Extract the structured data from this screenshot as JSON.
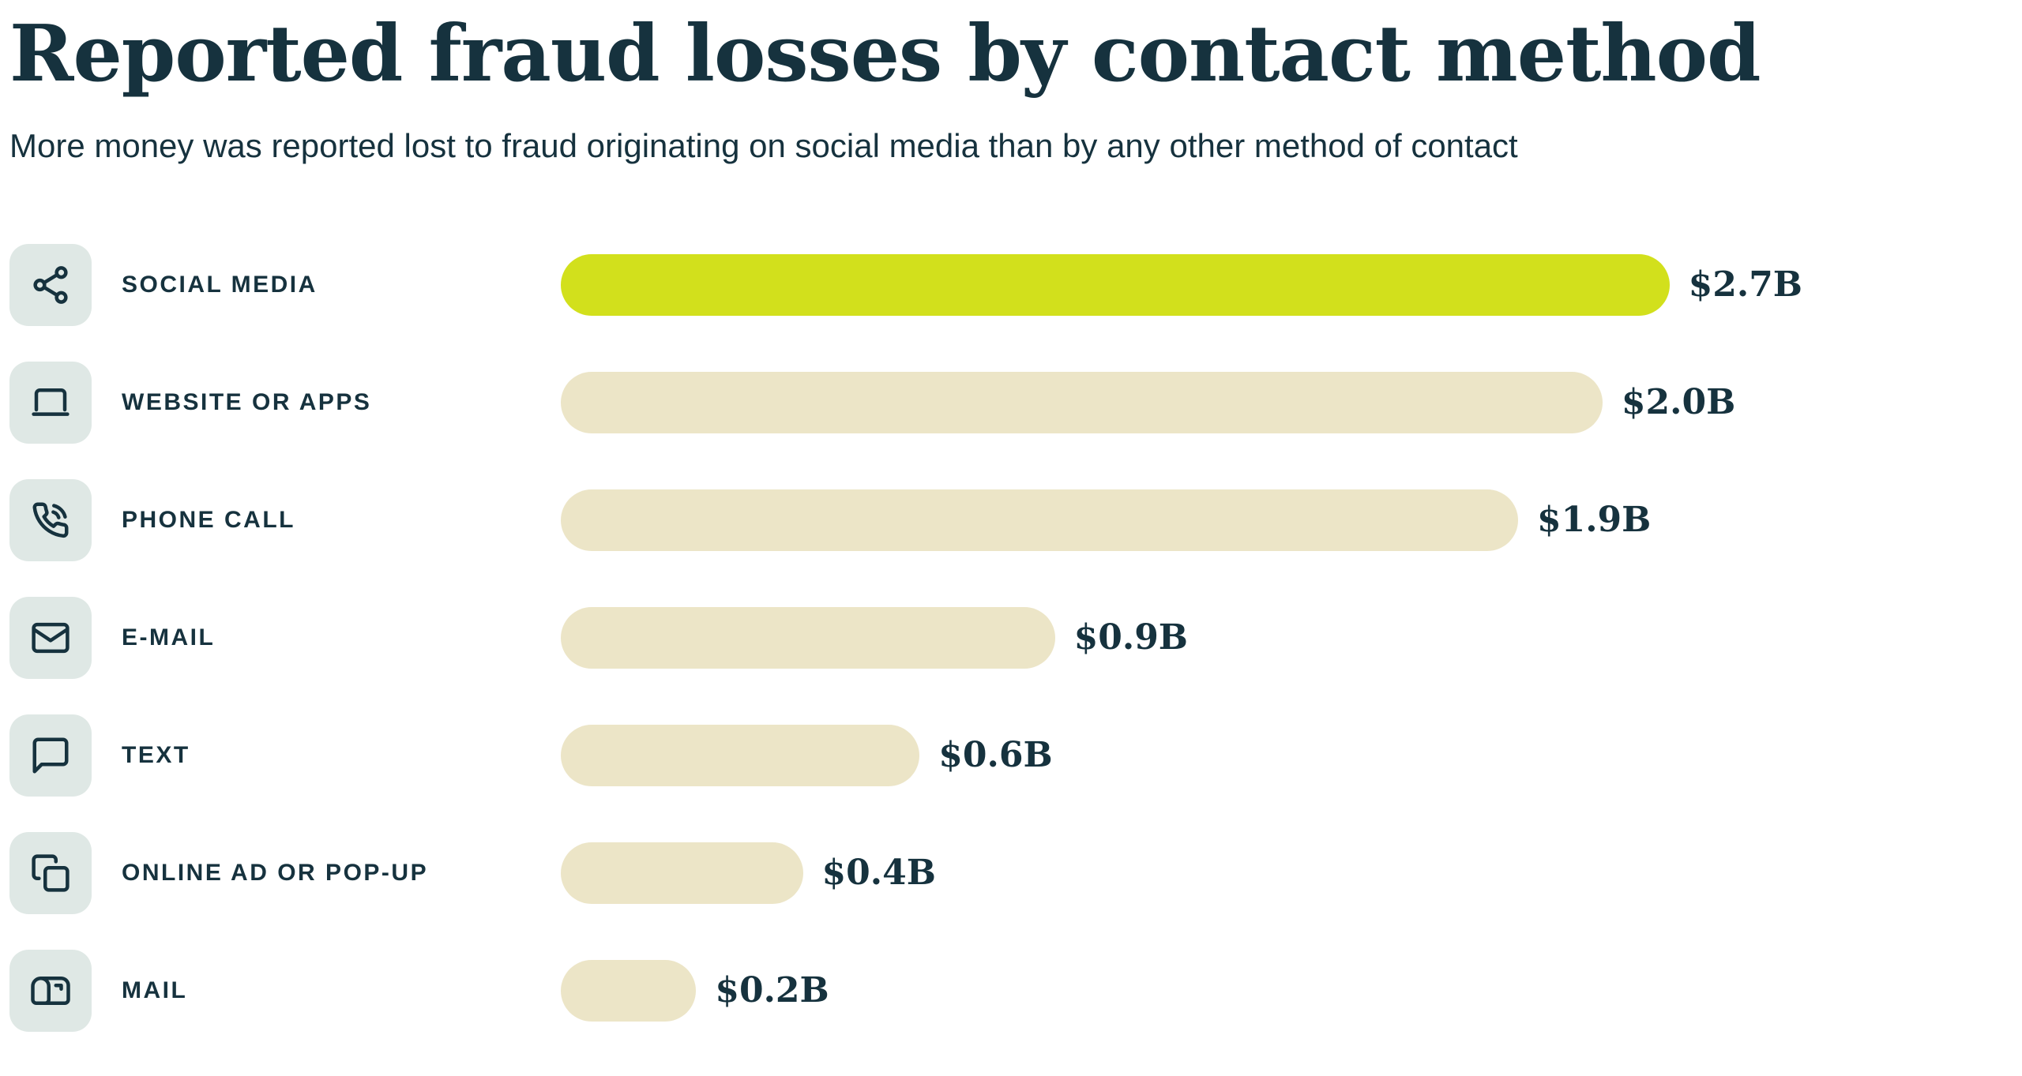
{
  "page": {
    "title": "Reported fraud losses by contact method",
    "subtitle": "More money was reported lost to fraud originating on social media than by any other method of contact"
  },
  "chart_data": {
    "type": "bar",
    "orientation": "horizontal",
    "title": "Reported fraud losses by contact method",
    "subtitle": "More money was reported lost to fraud originating on social media than by any other method of contact",
    "unit": "USD billions",
    "categories": [
      "SOCIAL MEDIA",
      "WEBSITE OR APPS",
      "PHONE CALL",
      "E-MAIL",
      "TEXT",
      "ONLINE AD OR POP-UP",
      "MAIL"
    ],
    "values": [
      2.7,
      2.0,
      1.9,
      0.9,
      0.6,
      0.4,
      0.2
    ],
    "value_labels": [
      "$2.7B",
      "$2.0B",
      "$1.9B",
      "$0.9B",
      "$0.6B",
      "$0.4B",
      "$0.2B"
    ],
    "icons": [
      "share-icon",
      "laptop-icon",
      "phone-call-icon",
      "envelope-icon",
      "speech-bubble-icon",
      "popup-windows-icon",
      "mailbox-icon"
    ],
    "bar_width_pct": [
      100,
      83.9,
      77.1,
      39.8,
      28.9,
      19.5,
      10.9
    ],
    "highlight_index": 0,
    "xlim": [
      0,
      2.7
    ],
    "grid": false,
    "legend": false,
    "colors": {
      "highlight_bar": "#d2e01c",
      "bar": "#ece5c7",
      "icon_tile": "#dfe8e5",
      "text": "#16323e"
    }
  }
}
